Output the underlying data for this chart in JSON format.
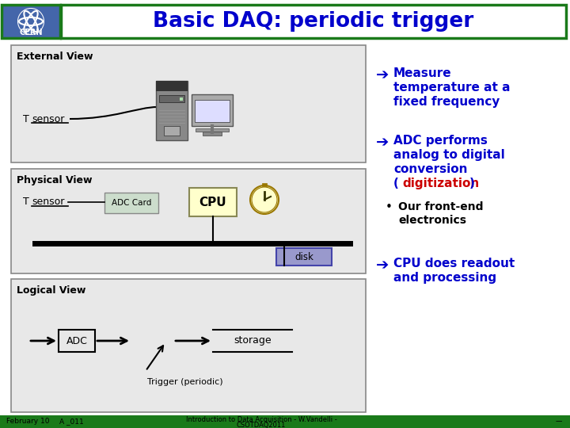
{
  "title": "Basic DAQ: periodic trigger",
  "title_color": "#0000cc",
  "title_bg_color": "#ffffff",
  "title_border_color": "#1a7a1a",
  "bg_color": "#ffffff",
  "left_panel_bg": "#e8e8e8",
  "left_panel_border": "#555555",
  "right_bullet_color": "#0000cc",
  "right_text_color": "#0000cc",
  "digitization_color": "#cc0000",
  "bullet1_line1": "Measure",
  "bullet1_line2": "temperature at a",
  "bullet1_line3": "fixed frequency",
  "bullet2_line1": "ADC performs",
  "bullet2_line2": "analog to digital",
  "bullet2_line3": "conversion",
  "bullet2_line4_red": "digitization",
  "bullet3_line1": "Our front-end",
  "bullet3_line2": "electronics",
  "bullet4_line1": "CPU does readout",
  "bullet4_line2": "and processing",
  "ext_label": "External View",
  "phys_label": "Physical View",
  "phys_adc": "ADC Card",
  "phys_cpu": "CPU",
  "phys_disk": "disk",
  "log_label": "Logical View",
  "log_adc": "ADC",
  "log_storage": "storage",
  "log_trigger": "Trigger (periodic)",
  "footer_left": "February 10",
  "footer_slide": "A _011",
  "footer_center1": "Introduction to Data Acquisition - W.Vandelli -",
  "footer_center2": "CSOTDAQ2011",
  "green_dark": "#1a7a1a",
  "cern_blue": "#0000cc",
  "bus_color": "#000000",
  "panel_border": "#888888"
}
